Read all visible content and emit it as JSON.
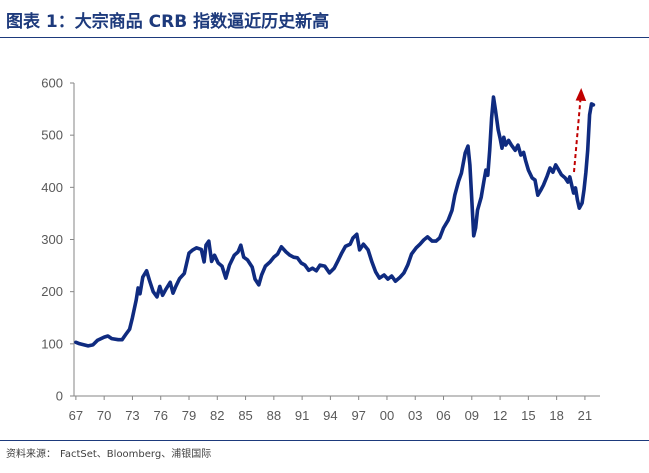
{
  "chart_data": {
    "type": "line",
    "title": "图表 1：大宗商品 CRB 指数逼近历史新高",
    "xlabel": "",
    "ylabel": "",
    "xlim": [
      1966.8,
      2022.6
    ],
    "ylim": [
      0,
      600
    ],
    "yticks": [
      0,
      100,
      200,
      300,
      400,
      500,
      600
    ],
    "xticks": [
      1967,
      1970,
      1973,
      1976,
      1979,
      1982,
      1985,
      1988,
      1991,
      1994,
      1997,
      2000,
      2003,
      2006,
      2009,
      2012,
      2015,
      2018,
      2021
    ],
    "xticklabels": [
      "67",
      "70",
      "73",
      "76",
      "79",
      "82",
      "85",
      "88",
      "91",
      "94",
      "97",
      "00",
      "03",
      "06",
      "09",
      "12",
      "15",
      "18",
      "21"
    ],
    "grid": false,
    "legend": "none",
    "series": [
      {
        "x": [
          1967.0,
          1967.4,
          1968.3,
          1968.8,
          1969.3,
          1970.0,
          1970.4,
          1970.8,
          1971.5,
          1971.9,
          1972.3,
          1972.7,
          1973.0,
          1973.4,
          1973.6,
          1973.8,
          1974.1,
          1974.5,
          1974.8,
          1975.2,
          1975.6,
          1975.9,
          1976.2,
          1976.5,
          1977.0,
          1977.3,
          1977.6,
          1978.0,
          1978.5,
          1979.0,
          1979.4,
          1979.8,
          1980.3,
          1980.6,
          1980.8,
          1981.1,
          1981.4,
          1981.7,
          1982.1,
          1982.5,
          1982.9,
          1983.3,
          1983.8,
          1984.2,
          1984.5,
          1984.8,
          1985.2,
          1985.7,
          1986.0,
          1986.4,
          1986.7,
          1987.1,
          1987.6,
          1988.0,
          1988.4,
          1988.8,
          1989.3,
          1989.7,
          1990.1,
          1990.5,
          1990.9,
          1991.3,
          1991.7,
          1992.1,
          1992.5,
          1992.9,
          1993.4,
          1993.9,
          1994.4,
          1994.8,
          1995.2,
          1995.6,
          1996.1,
          1996.4,
          1996.8,
          1997.1,
          1997.5,
          1998.0,
          1998.4,
          1998.8,
          1999.2,
          1999.7,
          2000.1,
          2000.5,
          2000.9,
          2001.4,
          2001.8,
          2002.2,
          2002.6,
          2003.1,
          2003.5,
          2003.9,
          2004.3,
          2004.8,
          2005.2,
          2005.6,
          2006.0,
          2006.5,
          2006.9,
          2007.2,
          2007.6,
          2007.9,
          2008.3,
          2008.6,
          2008.8,
          2009.0,
          2009.2,
          2009.4,
          2009.6,
          2010.0,
          2010.3,
          2010.5,
          2010.7,
          2010.9,
          2011.1,
          2011.3,
          2011.5,
          2011.8,
          2012.0,
          2012.2,
          2012.4,
          2012.6,
          2012.9,
          2013.2,
          2013.6,
          2013.9,
          2014.2,
          2014.5,
          2014.7,
          2015.0,
          2015.4,
          2015.7,
          2016.0,
          2016.3,
          2016.6,
          2017.0,
          2017.3,
          2017.6,
          2017.9,
          2018.2,
          2018.5,
          2018.9,
          2019.2,
          2019.4,
          2019.6,
          2019.8,
          2020.0,
          2020.2,
          2020.4,
          2020.7,
          2020.9,
          2021.1,
          2021.3,
          2021.5,
          2021.7,
          2021.9
        ],
        "values": [
          103,
          100,
          96,
          98,
          107,
          113,
          115,
          110,
          108,
          108,
          118,
          128,
          150,
          184,
          207,
          196,
          228,
          240,
          222,
          200,
          190,
          210,
          193,
          203,
          218,
          197,
          210,
          225,
          235,
          274,
          280,
          284,
          281,
          257,
          289,
          297,
          258,
          270,
          255,
          249,
          226,
          251,
          270,
          276,
          289,
          266,
          261,
          247,
          224,
          213,
          232,
          249,
          257,
          266,
          272,
          286,
          276,
          270,
          266,
          265,
          255,
          251,
          241,
          245,
          240,
          251,
          249,
          236,
          245,
          259,
          274,
          287,
          291,
          303,
          310,
          280,
          291,
          280,
          257,
          238,
          226,
          232,
          224,
          230,
          220,
          228,
          236,
          251,
          272,
          284,
          291,
          299,
          305,
          297,
          297,
          303,
          322,
          337,
          356,
          385,
          412,
          427,
          466,
          479,
          443,
          376,
          307,
          322,
          356,
          381,
          414,
          433,
          423,
          471,
          533,
          573,
          549,
          510,
          494,
          475,
          496,
          481,
          490,
          481,
          471,
          481,
          462,
          467,
          452,
          433,
          418,
          414,
          385,
          394,
          404,
          422,
          437,
          429,
          443,
          434,
          424,
          418,
          410,
          420,
          404,
          389,
          399,
          376,
          360,
          370,
          395,
          429,
          471,
          539,
          560,
          558
        ]
      }
    ]
  },
  "source": {
    "label": "资料来源：",
    "text": "FactSet、Bloomberg、浦银国际"
  },
  "colors": {
    "title": "#1d3a7c",
    "rule": "#1d3a7c",
    "line": "#0f2b80",
    "arrow": "#c00000",
    "axis": "#868686",
    "tick_label": "#595959"
  }
}
